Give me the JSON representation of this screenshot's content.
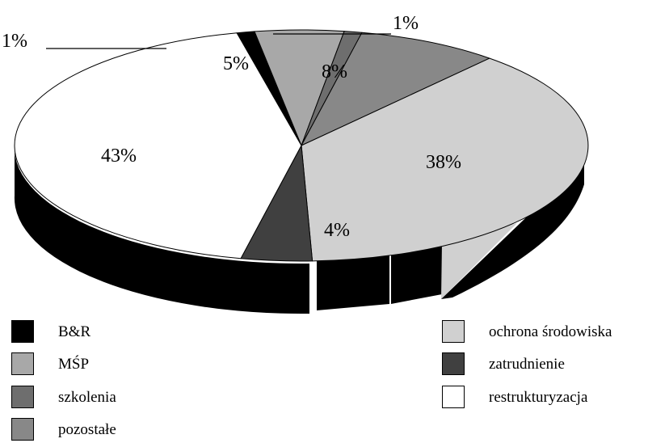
{
  "chart_data": {
    "type": "pie",
    "three_d": true,
    "slices": [
      {
        "label": "B&R",
        "value": 1,
        "data_label": "1%",
        "color": "#000000"
      },
      {
        "label": "MŚP",
        "value": 5,
        "data_label": "5%",
        "color": "#a8a8a8"
      },
      {
        "label": "szkolenia",
        "value": 1,
        "data_label": "1%",
        "color": "#6e6e6e"
      },
      {
        "label": "pozostałe",
        "value": 8,
        "data_label": "8%",
        "color": "#888888"
      },
      {
        "label": "ochrona środowiska",
        "value": 38,
        "data_label": "38%",
        "color": "#d0d0d0"
      },
      {
        "label": "zatrudnienie",
        "value": 4,
        "data_label": "4%",
        "color": "#404040"
      },
      {
        "label": "restrukturyzacja",
        "value": 43,
        "data_label": "43%",
        "color": "#ffffff"
      }
    ],
    "legend": {
      "placement": "bottom",
      "items": [
        {
          "label": "B&R",
          "color": "#000000"
        },
        {
          "label": "MŚP",
          "color": "#a8a8a8"
        },
        {
          "label": "szkolenia",
          "color": "#6e6e6e"
        },
        {
          "label": "pozostałe",
          "color": "#888888"
        },
        {
          "label": "ochrona środowiska",
          "color": "#d0d0d0"
        },
        {
          "label": "zatrudnienie",
          "color": "#404040"
        },
        {
          "label": "restrukturyzacja",
          "color": "#ffffff"
        }
      ]
    }
  }
}
